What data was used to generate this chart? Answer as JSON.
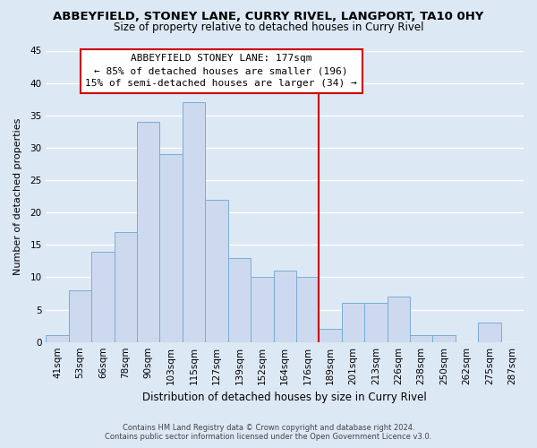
{
  "title": "ABBEYFIELD, STONEY LANE, CURRY RIVEL, LANGPORT, TA10 0HY",
  "subtitle": "Size of property relative to detached houses in Curry Rivel",
  "xlabel": "Distribution of detached houses by size in Curry Rivel",
  "ylabel": "Number of detached properties",
  "bar_color": "#ccd9ee",
  "bar_edge_color": "#7aadd4",
  "categories": [
    "41sqm",
    "53sqm",
    "66sqm",
    "78sqm",
    "90sqm",
    "103sqm",
    "115sqm",
    "127sqm",
    "139sqm",
    "152sqm",
    "164sqm",
    "176sqm",
    "189sqm",
    "201sqm",
    "213sqm",
    "226sqm",
    "238sqm",
    "250sqm",
    "262sqm",
    "275sqm",
    "287sqm"
  ],
  "values": [
    1,
    8,
    14,
    17,
    34,
    29,
    37,
    22,
    13,
    10,
    11,
    10,
    2,
    6,
    6,
    7,
    1,
    1,
    0,
    3,
    0
  ],
  "vline_color": "#cc0000",
  "annotation_title": "ABBEYFIELD STONEY LANE: 177sqm",
  "annotation_line1": "← 85% of detached houses are smaller (196)",
  "annotation_line2": "15% of semi-detached houses are larger (34) →",
  "annotation_box_color": "#ffffff",
  "annotation_box_edge": "#cc0000",
  "ylim": [
    0,
    45
  ],
  "footnote1": "Contains HM Land Registry data © Crown copyright and database right 2024.",
  "footnote2": "Contains public sector information licensed under the Open Government Licence v3.0.",
  "background_color": "#dde8f5",
  "grid_color": "#ffffff",
  "title_fontsize": 9.5,
  "subtitle_fontsize": 8.5,
  "xlabel_fontsize": 8.5,
  "ylabel_fontsize": 8,
  "tick_fontsize": 7.5,
  "annotation_fontsize": 8,
  "footnote_fontsize": 6
}
